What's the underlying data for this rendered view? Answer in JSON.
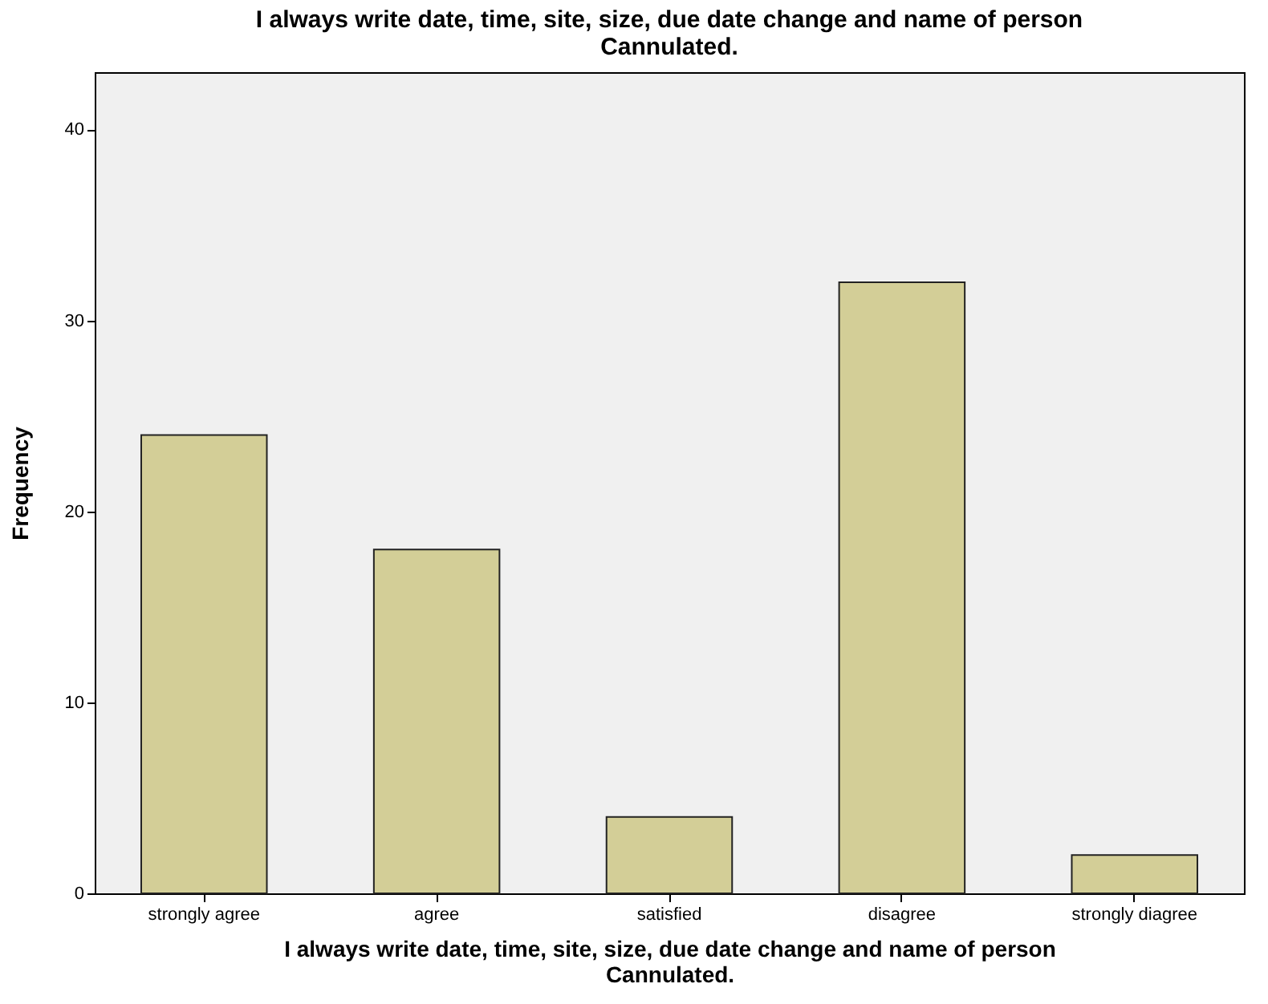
{
  "chart_data": {
    "type": "bar",
    "title": "I always write date, time, site, size, due date change and name of person\nCannulated.",
    "xlabel": "I always write date, time, site, size, due date change and name of person\nCannulated.",
    "ylabel": "Frequency",
    "categories": [
      "strongly agree",
      "agree",
      "satisfied",
      "disagree",
      "strongly diagree"
    ],
    "values": [
      24,
      18,
      4,
      32,
      2
    ],
    "color": "#d3ce97",
    "ylim": [
      0,
      43
    ],
    "yticks": [
      0,
      10,
      20,
      30,
      40
    ],
    "grid": false
  }
}
